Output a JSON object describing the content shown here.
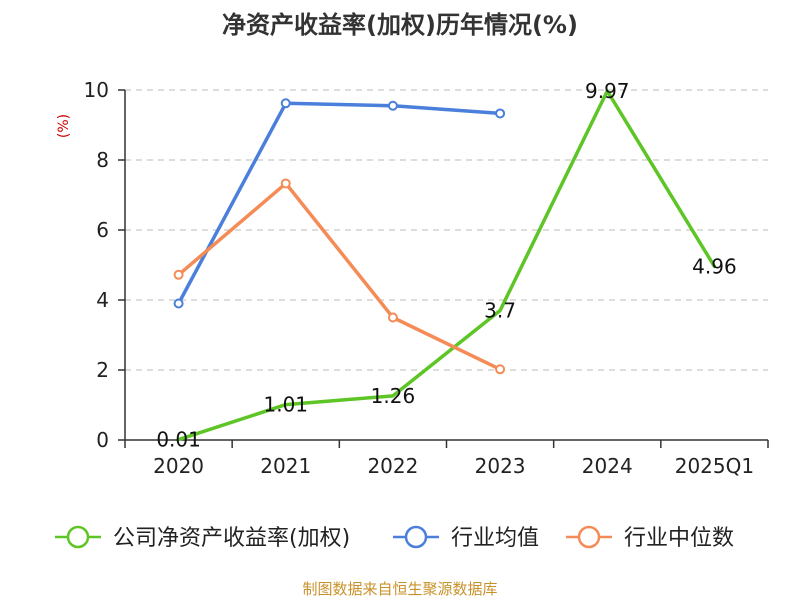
{
  "colors": {
    "roe": "#5ec526",
    "industry_avg": "#4a7fdb",
    "industry_median": "#f58b56",
    "ylabel": "#cc0000",
    "source": "#c8922a",
    "grid": "#bbbbbb",
    "axis": "#333333"
  },
  "chart_data": {
    "type": "line",
    "title": "净资产收益率(加权)历年情况(%)",
    "xlabel": "",
    "ylabel": "(%)",
    "categories": [
      "2020",
      "2021",
      "2022",
      "2023",
      "2024",
      "2025Q1"
    ],
    "ylim": [
      0,
      10
    ],
    "yticks": [
      0,
      2,
      4,
      6,
      8,
      10
    ],
    "grid": "horizontal dashed",
    "legend_position": "bottom",
    "series": [
      {
        "name": "公司净资产收益率(加权)",
        "color_key": "roe",
        "values": [
          0.01,
          1.01,
          1.26,
          3.7,
          9.97,
          4.96
        ],
        "labels": [
          "0.01",
          "1.01",
          "1.26",
          "3.7",
          "9.97",
          "4.96"
        ],
        "markers": false
      },
      {
        "name": "行业均值",
        "color_key": "industry_avg",
        "values": [
          3.9,
          9.62,
          9.55,
          9.33,
          null,
          null
        ],
        "markers": true
      },
      {
        "name": "行业中位数",
        "color_key": "industry_median",
        "values": [
          4.72,
          7.33,
          3.5,
          2.02,
          null,
          null
        ],
        "markers": true
      }
    ]
  },
  "footer": {
    "source": "制图数据来自恒生聚源数据库"
  }
}
